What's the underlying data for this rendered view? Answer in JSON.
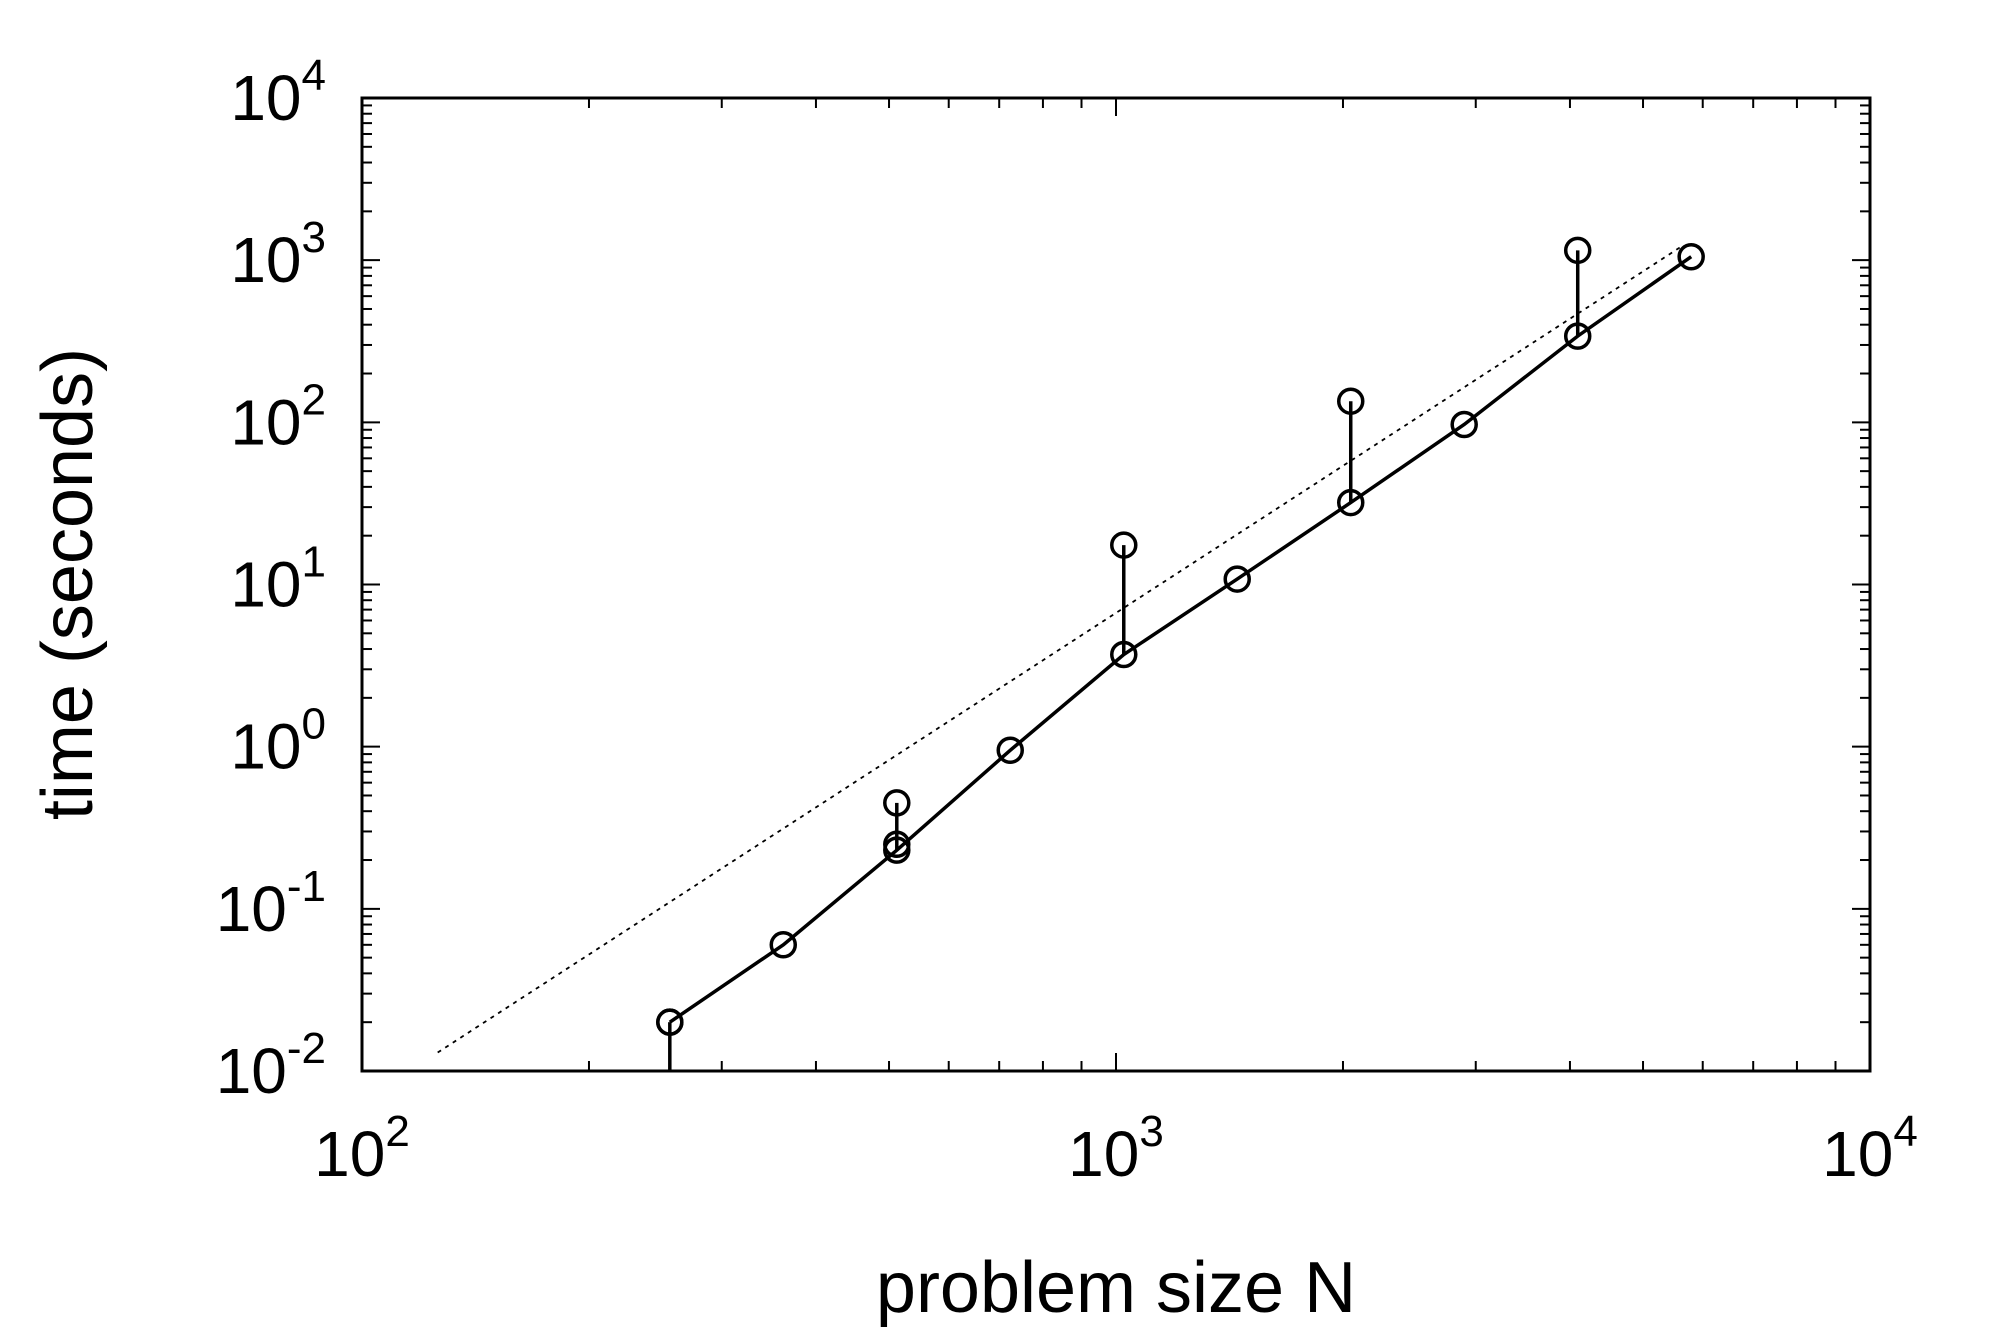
{
  "chart_data": {
    "type": "line",
    "title": "",
    "xlabel": "problem size N",
    "ylabel": "time (seconds)",
    "xscale": "log",
    "yscale": "log",
    "xlim": [
      100,
      10000
    ],
    "ylim": [
      0.01,
      10000
    ],
    "grid": false,
    "legend": "none",
    "x_ticks": [
      {
        "base": "10",
        "exp": "2",
        "value": 100
      },
      {
        "base": "10",
        "exp": "3",
        "value": 1000
      },
      {
        "base": "10",
        "exp": "4",
        "value": 10000
      }
    ],
    "y_ticks": [
      {
        "base": "10",
        "exp": "-2",
        "value": 0.01
      },
      {
        "base": "10",
        "exp": "-1",
        "value": 0.1
      },
      {
        "base": "10",
        "exp": "0",
        "value": 1
      },
      {
        "base": "10",
        "exp": "1",
        "value": 10
      },
      {
        "base": "10",
        "exp": "2",
        "value": 100
      },
      {
        "base": "10",
        "exp": "3",
        "value": 1000
      },
      {
        "base": "10",
        "exp": "4",
        "value": 10000
      }
    ],
    "series": [
      {
        "style": "solid line with open circles",
        "x": [
          256,
          362,
          512,
          724,
          1024,
          1448,
          2048,
          2896,
          4096,
          5792
        ],
        "y": [
          0.02,
          0.06,
          0.23,
          0.95,
          3.7,
          10.8,
          32,
          97,
          340,
          1050
        ]
      },
      {
        "style": "dotted reference line",
        "x": [
          126,
          5600
        ],
        "y": [
          0.013,
          1200
        ]
      }
    ],
    "upper_points": [
      {
        "x": 256,
        "y": 0.02
      },
      {
        "x": 512,
        "y": 0.45
      },
      {
        "x": 512,
        "y": 0.25
      },
      {
        "x": 1024,
        "y": 17.5
      },
      {
        "x": 2048,
        "y": 135
      },
      {
        "x": 4096,
        "y": 1150
      }
    ],
    "vertical_segments": [
      {
        "x": 256,
        "y_from": 0.01,
        "y_to": 0.02
      },
      {
        "x": 512,
        "y_from": 0.23,
        "y_to": 0.45
      },
      {
        "x": 1024,
        "y_from": 3.7,
        "y_to": 17.5
      },
      {
        "x": 2048,
        "y_from": 32,
        "y_to": 135
      },
      {
        "x": 4096,
        "y_from": 340,
        "y_to": 1150
      }
    ]
  }
}
